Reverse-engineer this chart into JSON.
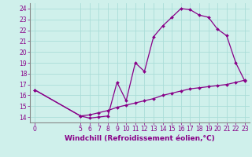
{
  "xlabel": "Windchill (Refroidissement éolien,°C)",
  "bg_color": "#cff0eb",
  "grid_color": "#aaddd8",
  "line_color": "#880088",
  "spine_color": "#888888",
  "x_wc": [
    0,
    5,
    6,
    7,
    8,
    9,
    10,
    11,
    12,
    13,
    14,
    15,
    16,
    17,
    18,
    19,
    20,
    21,
    22,
    23
  ],
  "y_wc": [
    16.5,
    14.1,
    13.9,
    14.0,
    14.1,
    17.2,
    15.5,
    19.0,
    18.2,
    21.4,
    22.4,
    23.2,
    24.0,
    23.9,
    23.4,
    23.2,
    22.1,
    21.5,
    19.0,
    17.3
  ],
  "x_tmp": [
    0,
    5,
    6,
    7,
    8,
    9,
    10,
    11,
    12,
    13,
    14,
    15,
    16,
    17,
    18,
    19,
    20,
    21,
    22,
    23
  ],
  "y_tmp": [
    16.5,
    14.1,
    14.2,
    14.4,
    14.6,
    14.9,
    15.1,
    15.3,
    15.5,
    15.7,
    16.0,
    16.2,
    16.4,
    16.6,
    16.7,
    16.8,
    16.9,
    17.0,
    17.2,
    17.4
  ],
  "ylim": [
    13.5,
    24.5
  ],
  "xlim": [
    -0.5,
    23.5
  ],
  "yticks": [
    14,
    15,
    16,
    17,
    18,
    19,
    20,
    21,
    22,
    23,
    24
  ],
  "xticks": [
    0,
    5,
    6,
    7,
    8,
    9,
    10,
    11,
    12,
    13,
    14,
    15,
    16,
    17,
    18,
    19,
    20,
    21,
    22,
    23
  ],
  "tick_fontsize": 5.5,
  "xlabel_fontsize": 6.5
}
